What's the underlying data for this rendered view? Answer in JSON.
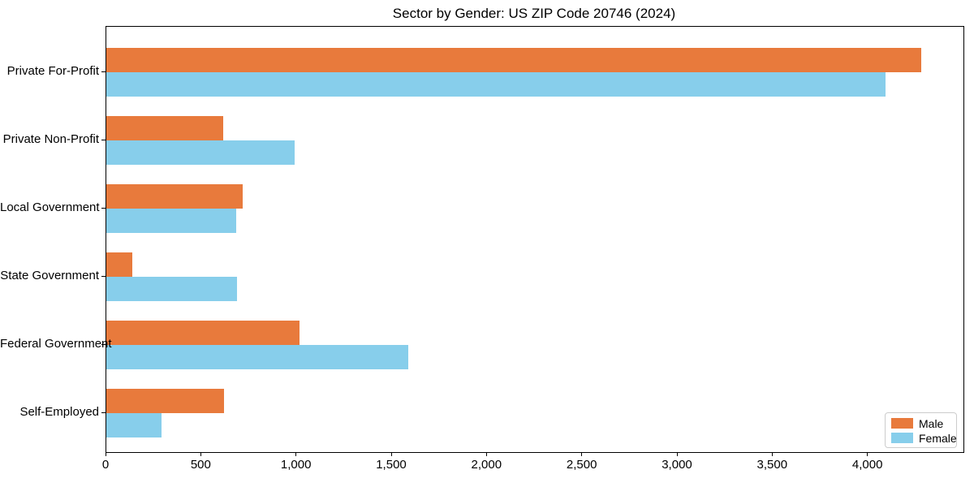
{
  "chart_data": {
    "type": "bar",
    "orientation": "horizontal",
    "title": "Sector by Gender: US ZIP Code 20746 (2024)",
    "categories": [
      "Private For-Profit",
      "Private Non-Profit",
      "Local Government",
      "State Government",
      "Federal Government",
      "Self-Employed"
    ],
    "series": [
      {
        "name": "Male",
        "color": "#E87A3C",
        "values": [
          4280,
          615,
          715,
          135,
          1015,
          620
        ]
      },
      {
        "name": "Female",
        "color": "#87CEEB",
        "values": [
          4090,
          990,
          680,
          685,
          1585,
          290
        ]
      }
    ],
    "xlim": [
      0,
      4500
    ],
    "x_ticks": [
      0,
      500,
      1000,
      1500,
      2000,
      2500,
      3000,
      3500,
      4000
    ],
    "x_tick_labels": [
      "0",
      "500",
      "1,000",
      "1,500",
      "2,000",
      "2,500",
      "3,000",
      "3,500",
      "4,000"
    ],
    "ylabel": "",
    "xlabel": "",
    "grid": false,
    "legend_position": "lower right"
  }
}
